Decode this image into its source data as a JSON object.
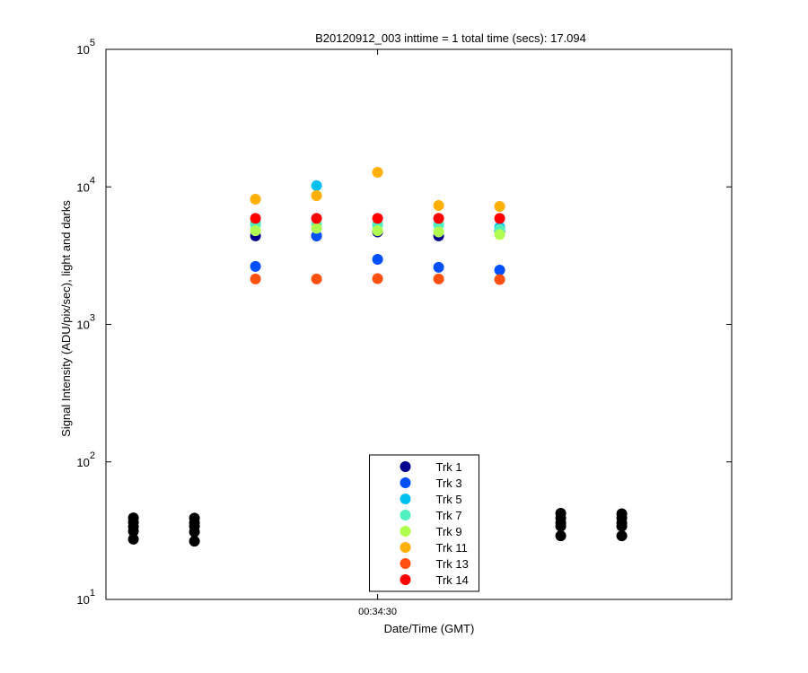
{
  "chart_data": {
    "type": "scatter",
    "title": "B20120912_003 inttime = 1 total time (secs): 17.094",
    "x_label": "Date/Time (GMT)",
    "y_label": "Signal Intensity (ADU/pix/sec), light and darks",
    "log_y": true,
    "grid": false,
    "legend": "bottom-center",
    "xlim": [
      2061.1,
      2081.6
    ],
    "xticks": [
      {
        "value": 2070,
        "label": "00:34:30"
      }
    ],
    "ylim": [
      10,
      100000
    ],
    "yticks": [
      {
        "value": 10,
        "label": "10",
        "exponent": "1"
      },
      {
        "value": 100,
        "label": "10",
        "exponent": "2"
      },
      {
        "value": 1000,
        "label": "10",
        "exponent": "3"
      },
      {
        "value": 10000,
        "label": "10",
        "exponent": "4"
      },
      {
        "value": 100000,
        "label": "10",
        "exponent": "5"
      }
    ],
    "series": [
      {
        "color": "#000000",
        "x": [
          2062,
          2062,
          2062,
          2062,
          2062,
          2064,
          2064,
          2064,
          2064,
          2064,
          2076,
          2076,
          2076,
          2076,
          2076,
          2078,
          2078,
          2078,
          2078,
          2078
        ],
        "values": [
          39.2,
          36.4,
          33.8,
          31.3,
          27.4,
          39,
          36,
          34,
          31,
          26.5,
          42.3,
          39,
          36,
          34,
          29,
          42,
          39,
          36,
          34,
          29
        ]
      },
      {
        "name": "Trk 1",
        "color": "#00008c",
        "x": [
          2066,
          2068,
          2070,
          2072,
          2074
        ],
        "values": [
          4400,
          4400,
          4700,
          4400,
          4800
        ]
      },
      {
        "name": "Trk 3",
        "color": "#0050ff",
        "x": [
          2066,
          2068,
          2070,
          2072,
          2074
        ],
        "values": [
          2640,
          4400,
          2970,
          2600,
          2480
        ]
      },
      {
        "name": "Trk 5",
        "color": "#00c0f0",
        "x": [
          2066,
          2068,
          2070,
          2072,
          2074
        ],
        "values": [
          5400,
          10200,
          5300,
          5300,
          5100
        ]
      },
      {
        "name": "Trk 7",
        "color": "#50f0c0",
        "x": [
          2066,
          2068,
          2070,
          2072,
          2074
        ],
        "values": [
          5300,
          5300,
          5300,
          5300,
          4900
        ]
      },
      {
        "name": "Trk 9",
        "color": "#b0ff50",
        "x": [
          2066,
          2068,
          2070,
          2072,
          2074
        ],
        "values": [
          4800,
          5000,
          4800,
          4700,
          4500
        ]
      },
      {
        "name": "Trk 11",
        "color": "#ffb000",
        "x": [
          2066,
          2068,
          2070,
          2072,
          2074
        ],
        "values": [
          8130,
          8640,
          12770,
          7320,
          7210
        ]
      },
      {
        "name": "Trk 13",
        "color": "#ff5010",
        "x": [
          2066,
          2068,
          2070,
          2072,
          2074
        ],
        "values": [
          2140,
          2140,
          2150,
          2140,
          2120
        ]
      },
      {
        "name": "Trk 14",
        "color": "#ff0000",
        "x": [
          2066,
          2068,
          2070,
          2072,
          2074
        ],
        "values": [
          5900,
          5900,
          5900,
          5900,
          5900
        ]
      }
    ]
  }
}
